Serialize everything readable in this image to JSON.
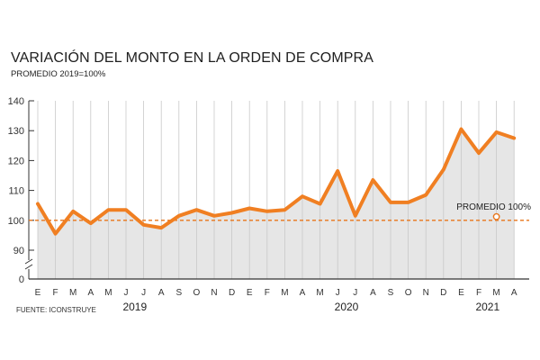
{
  "chart_data": {
    "type": "area",
    "title": "VARIACIÓN DEL MONTO EN LA ORDEN DE COMPRA",
    "subtitle": "PROMEDIO 2019=100%",
    "source": "FUENTE: ICONSTRUYE",
    "x": [
      "E",
      "F",
      "M",
      "A",
      "M",
      "J",
      "J",
      "A",
      "S",
      "O",
      "N",
      "D",
      "E",
      "F",
      "M",
      "A",
      "M",
      "J",
      "J",
      "A",
      "S",
      "O",
      "N",
      "D",
      "E",
      "F",
      "M",
      "A"
    ],
    "years": [
      {
        "label": "2019",
        "center_index": 5.5
      },
      {
        "label": "2020",
        "center_index": 17.5
      },
      {
        "label": "2021",
        "center_index": 25.5
      }
    ],
    "series": [
      {
        "name": "Variación del monto",
        "values": [
          105.5,
          95.5,
          103,
          99,
          103.5,
          103.5,
          98.5,
          97.5,
          101.5,
          103.5,
          101.5,
          102.5,
          104,
          103,
          103.5,
          108,
          105.5,
          116.5,
          101.5,
          113.5,
          106,
          106,
          108.5,
          117,
          130.5,
          122.5,
          129.5,
          127.5
        ]
      }
    ],
    "reference_line": {
      "value": 100,
      "label": "PROMEDIO 100%"
    },
    "y_ticks": [
      0,
      90,
      100,
      110,
      120,
      130,
      140
    ],
    "ylim": [
      80,
      140
    ],
    "axis_break": true,
    "grid": "vertical",
    "colors": {
      "line": "#f07f22",
      "area": "#e6e6e6",
      "reference": "#e8751a",
      "grid": "#c9c9c9",
      "axis": "#333333"
    }
  }
}
